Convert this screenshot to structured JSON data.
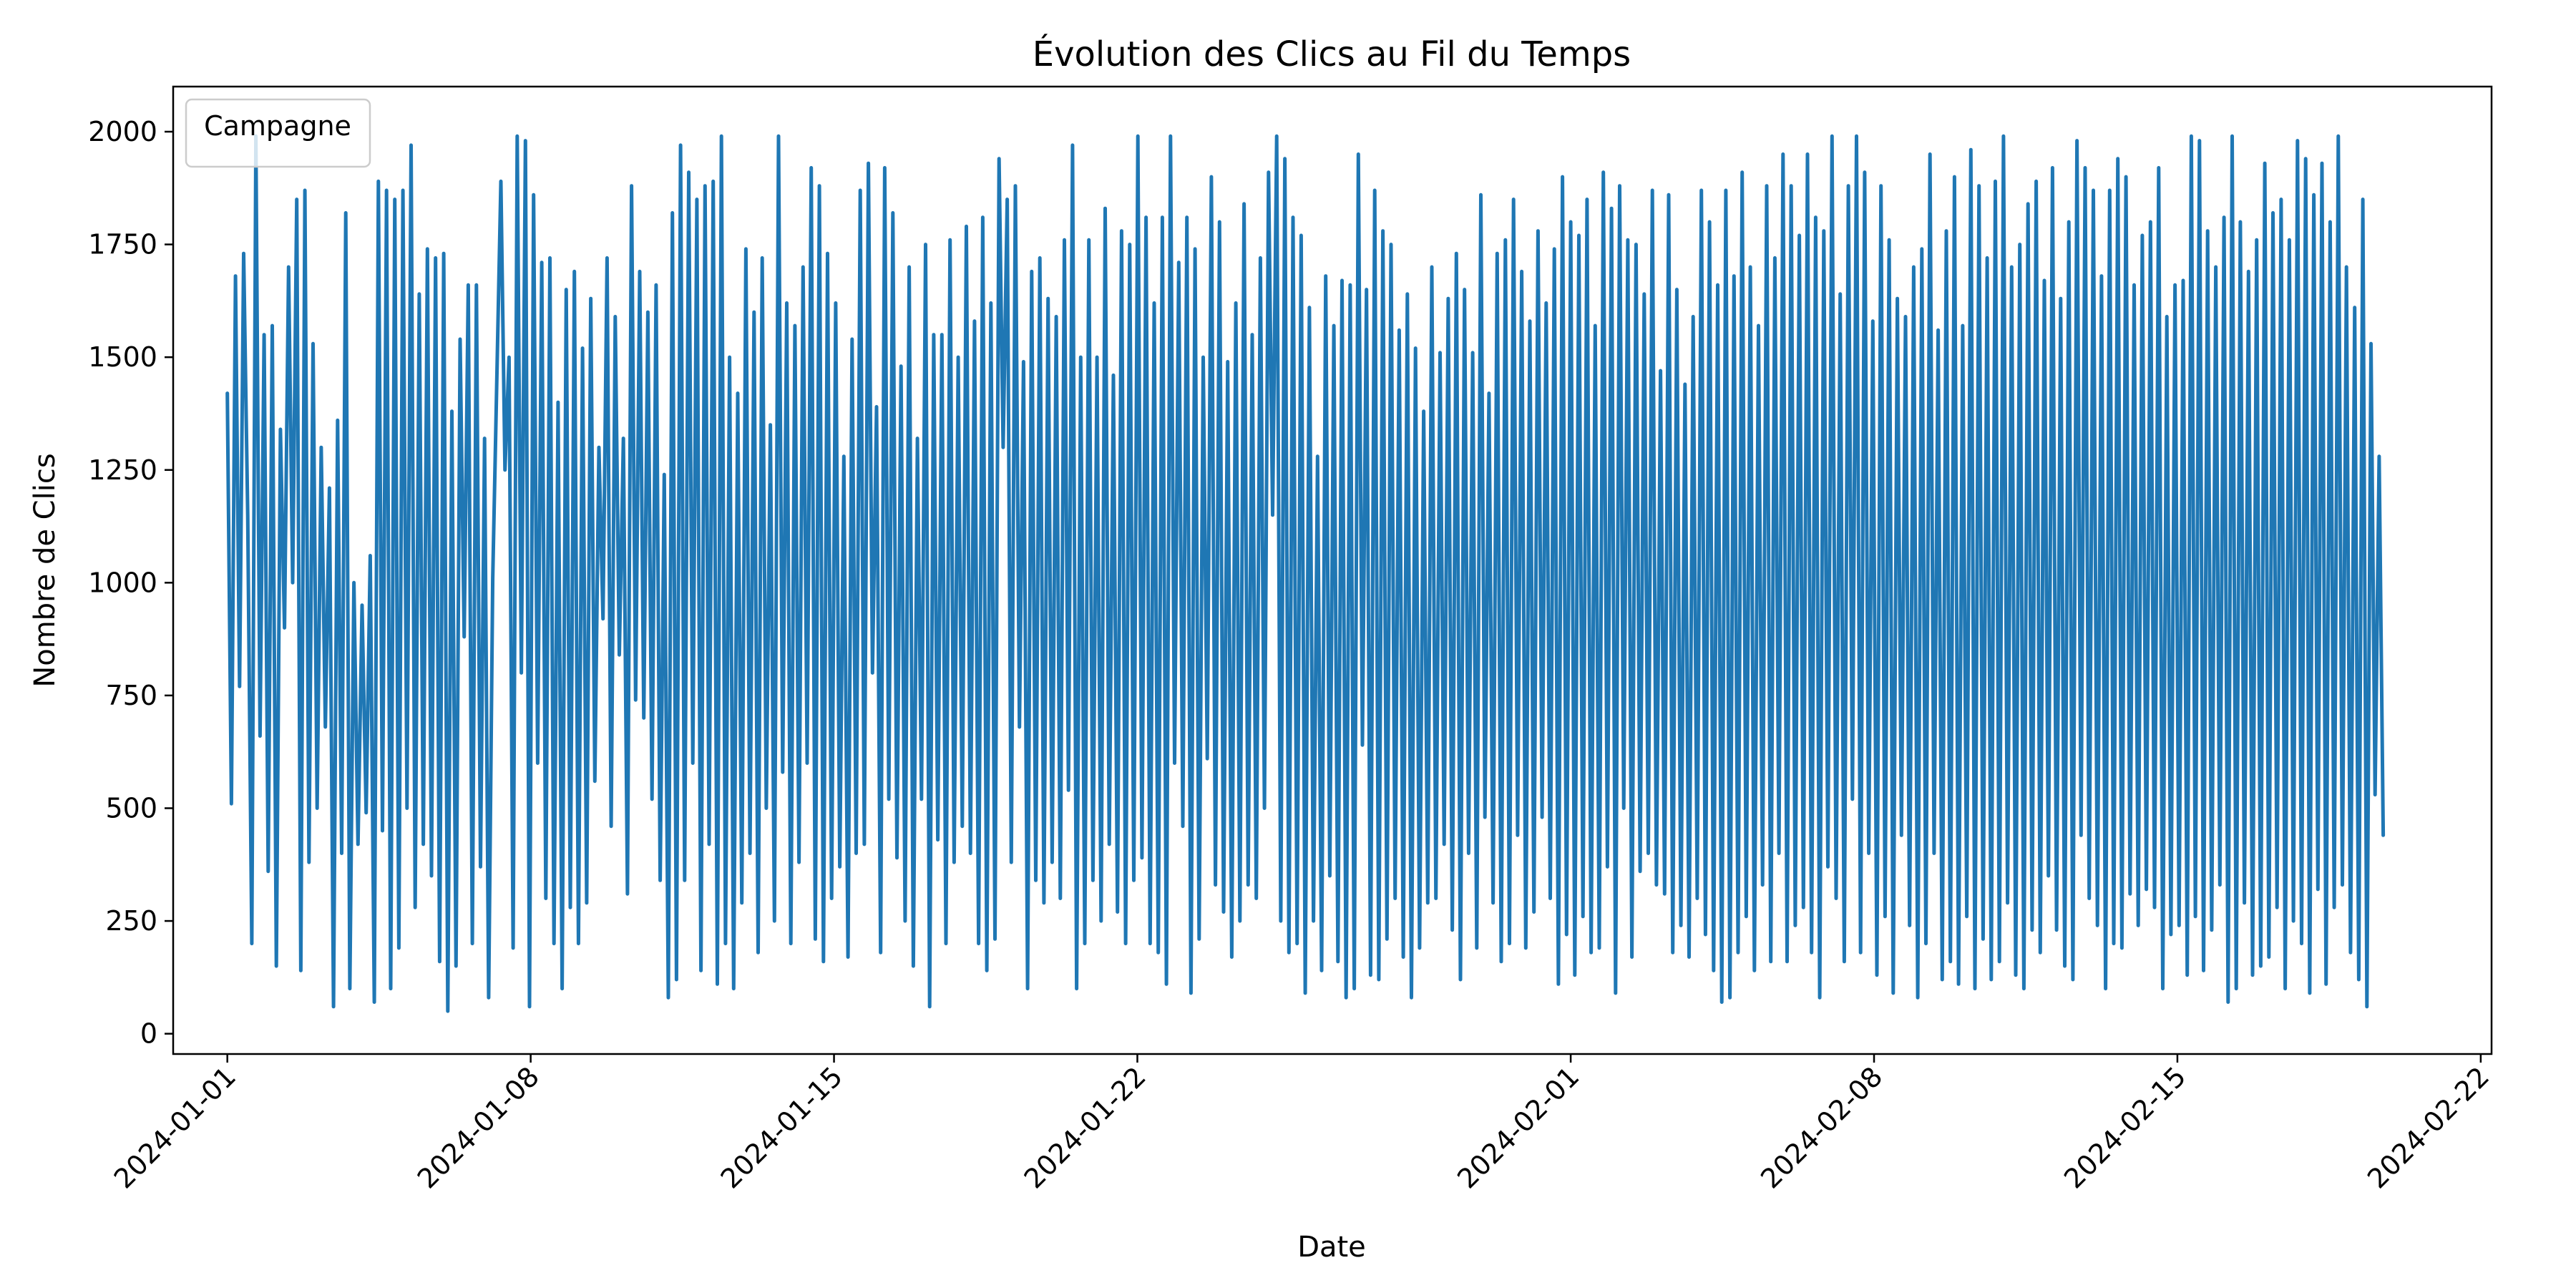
{
  "chart_data": {
    "type": "line",
    "title": "Évolution des Clics au Fil du Temps",
    "xlabel": "Date",
    "ylabel": "Nombre de Clics",
    "xlim": [
      "2023-12-30 18:00",
      "2024-02-22 06:00"
    ],
    "ylim": [
      -45,
      2100
    ],
    "x_ticks": [
      "2024-01-01",
      "2024-01-08",
      "2024-01-15",
      "2024-01-22",
      "2024-02-01",
      "2024-02-08",
      "2024-02-15",
      "2024-02-22"
    ],
    "y_ticks": [
      0,
      250,
      500,
      750,
      1000,
      1250,
      1500,
      1750,
      2000
    ],
    "grid": false,
    "legend": {
      "title": "Campagne",
      "placement": "upper left",
      "entries": []
    },
    "x_sampling": {
      "start": "2024-01-01 00:00",
      "end": "2024-02-19 18:00",
      "frequency": "hourly"
    },
    "series": [
      {
        "color": "#1f77b4",
        "values": [
          1420,
          510,
          1680,
          770,
          1730,
          1150,
          200,
          1990,
          660,
          1550,
          360,
          1570,
          150,
          1340,
          900,
          1700,
          1000,
          1850,
          140,
          1870,
          380,
          1530,
          500,
          1300,
          680,
          1210,
          60,
          1360,
          400,
          1820,
          100,
          1000,
          420,
          950,
          490,
          1060,
          70,
          1890,
          450,
          1870,
          100,
          1850,
          190,
          1870,
          500,
          1970,
          280,
          1640,
          420,
          1740,
          350,
          1720,
          160,
          1730,
          50,
          1380,
          150,
          1540,
          880,
          1660,
          200,
          1660,
          370,
          1320,
          80,
          1010,
          1450,
          1890,
          1250,
          1500,
          190,
          1990,
          800,
          1980,
          60,
          1860,
          600,
          1710,
          300,
          1720,
          200,
          1400,
          100,
          1650,
          280,
          1690,
          200,
          1520,
          290,
          1630,
          560,
          1300,
          920,
          1720,
          460,
          1590,
          840,
          1320,
          310,
          1880,
          740,
          1690,
          700,
          1600,
          520,
          1660,
          340,
          1240,
          80,
          1820,
          120,
          1970,
          340,
          1910,
          600,
          1850,
          140,
          1880,
          420,
          1890,
          110,
          1990,
          200,
          1500,
          100,
          1420,
          290,
          1740,
          400,
          1600,
          180,
          1720,
          500,
          1350,
          250,
          1990,
          580,
          1620,
          200,
          1570,
          380,
          1700,
          600,
          1920,
          210,
          1880,
          160,
          1730,
          300,
          1620,
          370,
          1280,
          170,
          1540,
          400,
          1870,
          420,
          1930,
          800,
          1390,
          180,
          1920,
          520,
          1820,
          390,
          1480,
          250,
          1700,
          150,
          1320,
          520,
          1750,
          60,
          1550,
          430,
          1550,
          200,
          1760,
          380,
          1500,
          460,
          1790,
          400,
          1580,
          200,
          1810,
          140,
          1620,
          210,
          1940,
          1300,
          1850,
          380,
          1880,
          680,
          1490,
          100,
          1690,
          340,
          1720,
          290,
          1630,
          380,
          1590,
          300,
          1760,
          540,
          1970,
          100,
          1500,
          200,
          1760,
          340,
          1500,
          250,
          1830,
          420,
          1460,
          270,
          1780,
          200,
          1750,
          340,
          1990,
          390,
          1810,
          200,
          1620,
          180,
          1810,
          110,
          1990,
          600,
          1710,
          460,
          1810,
          90,
          1740,
          210,
          1500,
          610,
          1900,
          330,
          1800,
          270,
          1490,
          170,
          1620,
          250,
          1840,
          330,
          1550,
          300,
          1720,
          500,
          1910,
          1150,
          1990,
          250,
          1940,
          180,
          1810,
          200,
          1770,
          90,
          1610,
          250,
          1280,
          140,
          1680,
          350,
          1570,
          160,
          1670,
          80,
          1660,
          100,
          1950,
          640,
          1650,
          130,
          1870,
          120,
          1780,
          210,
          1750,
          300,
          1560,
          170,
          1640,
          80,
          1520,
          190,
          1380,
          290,
          1700,
          300,
          1510,
          420,
          1630,
          230,
          1730,
          120,
          1650,
          400,
          1510,
          190,
          1860,
          480,
          1420,
          290,
          1730,
          160,
          1760,
          200,
          1850,
          440,
          1690,
          190,
          1580,
          270,
          1780,
          480,
          1620,
          300,
          1740,
          110,
          1900,
          220,
          1800,
          130,
          1770,
          260,
          1850,
          180,
          1570,
          190,
          1910,
          370,
          1830,
          90,
          1880,
          500,
          1760,
          170,
          1750,
          360,
          1640,
          400,
          1870,
          330,
          1470,
          310,
          1860,
          180,
          1650,
          240,
          1440,
          170,
          1590,
          300,
          1870,
          220,
          1800,
          140,
          1660,
          70,
          1870,
          80,
          1680,
          180,
          1910,
          260,
          1700,
          140,
          1570,
          330,
          1880,
          160,
          1720,
          400,
          1950,
          160,
          1880,
          240,
          1770,
          280,
          1950,
          180,
          1810,
          80,
          1780,
          370,
          1990,
          300,
          1640,
          160,
          1880,
          520,
          1990,
          180,
          1910,
          400,
          1580,
          130,
          1880,
          260,
          1760,
          90,
          1630,
          440,
          1590,
          240,
          1700,
          80,
          1740,
          200,
          1950,
          400,
          1560,
          120,
          1780,
          160,
          1900,
          110,
          1570,
          260,
          1960,
          100,
          1880,
          210,
          1720,
          120,
          1890,
          160,
          1990,
          290,
          1700,
          130,
          1750,
          100,
          1840,
          230,
          1890,
          180,
          1670,
          350,
          1920,
          230,
          1630,
          150,
          1800,
          120,
          1980,
          440,
          1920,
          300,
          1870,
          240,
          1680,
          100,
          1870,
          200,
          1940,
          190,
          1900,
          310,
          1660,
          240,
          1770,
          320,
          1800,
          280,
          1920,
          100,
          1590,
          220,
          1660,
          240,
          1670,
          130,
          1990,
          260,
          1980,
          140,
          1780,
          230,
          1700,
          330,
          1810,
          70,
          1990,
          100,
          1800,
          290,
          1690,
          130,
          1760,
          150,
          1930,
          170,
          1820,
          280,
          1850,
          100,
          1760,
          250,
          1980,
          200,
          1940,
          90,
          1860,
          320,
          1930,
          110,
          1800,
          280,
          1990,
          330,
          1700,
          180,
          1610,
          120,
          1850,
          60,
          1530,
          530,
          1280,
          440
        ]
      }
    ]
  }
}
